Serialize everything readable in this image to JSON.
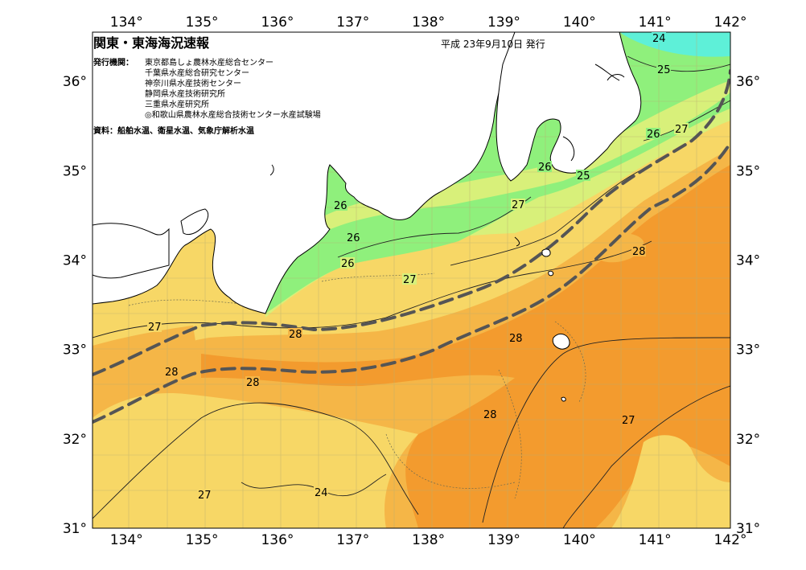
{
  "header": {
    "title": "関東・東海海況速報",
    "issued": "平成 23年9月10日 発行",
    "agencies_label": "発行機関：",
    "agencies": [
      "東京都島しょ農林水産総合センター",
      "千葉県水産総合研究センター",
      "神奈川県水産技術センター",
      "静岡県水産技術研究所",
      "三重県水産研究所",
      "◎和歌山県農林水産総合技術センター水産試験場"
    ],
    "source": "資料：船舶水温、衛星水温、気象庁解析水温"
  },
  "axes": {
    "lon_ticks": [
      "134°",
      "135°",
      "136°",
      "137°",
      "138°",
      "139°",
      "140°",
      "141°",
      "142°"
    ],
    "lat_ticks": [
      "36°",
      "35°",
      "34°",
      "33°",
      "32°",
      "31°"
    ],
    "lat_tick_values": [
      36,
      35,
      34,
      33,
      32,
      31
    ],
    "lon_range": [
      133.55,
      142
    ],
    "lat_range": [
      31,
      36.55
    ]
  },
  "contour_labels": [
    "24",
    "25",
    "26",
    "27",
    "26",
    "25",
    "26",
    "27",
    "26",
    "26",
    "27",
    "28",
    "27",
    "28",
    "28",
    "28",
    "28",
    "28",
    "27",
    "27"
  ],
  "colors": {
    "t24": "#5ef0d8",
    "t25": "#8ff07c",
    "t26": "#d8f07a",
    "t27": "#f7d766",
    "t28": "#f5b647",
    "t29": "#f39b2e",
    "land": "#ffffff",
    "kuroshio": "#555555"
  }
}
